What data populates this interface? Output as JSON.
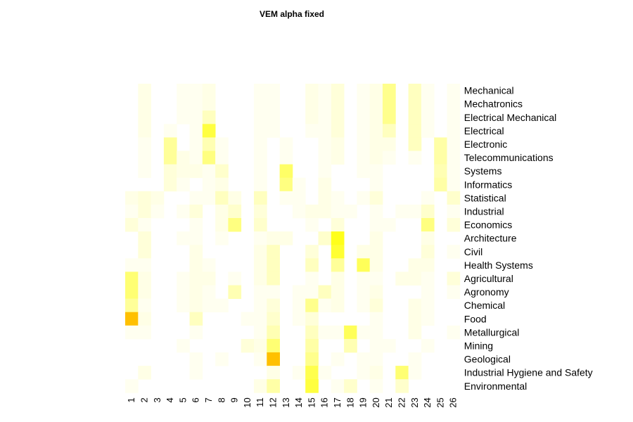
{
  "chart_data": {
    "type": "heatmap",
    "title": "VEM alpha fixed",
    "xlabel": "",
    "ylabel": "",
    "x": [
      "1",
      "2",
      "3",
      "4",
      "5",
      "6",
      "7",
      "8",
      "9",
      "10",
      "11",
      "12",
      "13",
      "14",
      "15",
      "16",
      "17",
      "18",
      "19",
      "20",
      "21",
      "22",
      "23",
      "24",
      "25",
      "26"
    ],
    "y": [
      "Mechanical",
      "Mechatronics",
      "Electrical Mechanical",
      "Electrical",
      "Electronic",
      "Telecommunications",
      "Systems",
      "Informatics",
      "Statistical",
      "Industrial",
      "Economics",
      "Architecture",
      "Civil",
      "Health Systems",
      "Agricultural",
      "Agronomy",
      "Chemical",
      "Food",
      "Metallurgical",
      "Mining",
      "Geological",
      "Industrial Hygiene and Safety",
      "Environmental"
    ],
    "color_scale": {
      "low": "#ffffff",
      "mid": "#ffff00",
      "high": "#ffb000"
    },
    "values": [
      [
        0,
        0.1,
        0,
        0,
        0.06,
        0.06,
        0.1,
        0,
        0,
        0,
        0.06,
        0.06,
        0,
        0,
        0.1,
        0.06,
        0.15,
        0,
        0.06,
        0.1,
        0.45,
        0,
        0.25,
        0.06,
        0,
        0.06
      ],
      [
        0,
        0.1,
        0,
        0,
        0.06,
        0.06,
        0.1,
        0,
        0,
        0,
        0.06,
        0.06,
        0,
        0,
        0.1,
        0.06,
        0.15,
        0,
        0.06,
        0.1,
        0.45,
        0,
        0.25,
        0.06,
        0,
        0.06
      ],
      [
        0,
        0.1,
        0,
        0,
        0.06,
        0.06,
        0.25,
        0,
        0,
        0,
        0.06,
        0.06,
        0,
        0,
        0.1,
        0.06,
        0.15,
        0,
        0.06,
        0.1,
        0.45,
        0,
        0.25,
        0.06,
        0,
        0.06
      ],
      [
        0,
        0.1,
        0,
        0.06,
        0,
        0.06,
        0.75,
        0,
        0,
        0,
        0.06,
        0.06,
        0,
        0,
        0.06,
        0.06,
        0.15,
        0,
        0.06,
        0.1,
        0.25,
        0,
        0.25,
        0.06,
        0,
        0.06
      ],
      [
        0,
        0.06,
        0,
        0.4,
        0,
        0.06,
        0.3,
        0.06,
        0,
        0,
        0.06,
        0,
        0.06,
        0,
        0,
        0.06,
        0.1,
        0,
        0.06,
        0.1,
        0.1,
        0,
        0.25,
        0,
        0.35,
        0.06
      ],
      [
        0,
        0.06,
        0,
        0.4,
        0.1,
        0.06,
        0.5,
        0.06,
        0,
        0,
        0.06,
        0,
        0.06,
        0,
        0,
        0.06,
        0.1,
        0,
        0.06,
        0.1,
        0.06,
        0,
        0.06,
        0,
        0.35,
        0.06
      ],
      [
        0,
        0.06,
        0,
        0.15,
        0.1,
        0.1,
        0.06,
        0.2,
        0,
        0,
        0.06,
        0,
        0.6,
        0,
        0,
        0.06,
        0,
        0,
        0.06,
        0.06,
        0,
        0,
        0,
        0,
        0.3,
        0.06
      ],
      [
        0,
        0,
        0,
        0.15,
        0.06,
        0,
        0.06,
        0.1,
        0,
        0,
        0.06,
        0,
        0.5,
        0.06,
        0,
        0.1,
        0,
        0,
        0,
        0.06,
        0,
        0,
        0,
        0,
        0.35,
        0.06
      ],
      [
        0.1,
        0.15,
        0.1,
        0,
        0,
        0.06,
        0.06,
        0.25,
        0.1,
        0,
        0.25,
        0,
        0.06,
        0.06,
        0,
        0.1,
        0.06,
        0,
        0.06,
        0.15,
        0,
        0,
        0,
        0.06,
        0,
        0.2
      ],
      [
        0.06,
        0.15,
        0.06,
        0,
        0.06,
        0.15,
        0,
        0.1,
        0.2,
        0,
        0.15,
        0,
        0,
        0.06,
        0.1,
        0.1,
        0.06,
        0.06,
        0,
        0.06,
        0,
        0.06,
        0.06,
        0.2,
        0,
        0.06
      ],
      [
        0.15,
        0.06,
        0,
        0,
        0,
        0.06,
        0,
        0.1,
        0.5,
        0,
        0.2,
        0,
        0,
        0,
        0.06,
        0,
        0.15,
        0,
        0,
        0.06,
        0.06,
        0,
        0,
        0.5,
        0,
        0.15
      ],
      [
        0,
        0.15,
        0,
        0,
        0.06,
        0.06,
        0,
        0.06,
        0,
        0,
        0.06,
        0.1,
        0.1,
        0,
        0,
        0.2,
        0.9,
        0,
        0,
        0.1,
        0,
        0,
        0,
        0.1,
        0,
        0
      ],
      [
        0,
        0.15,
        0,
        0,
        0,
        0.1,
        0,
        0,
        0,
        0,
        0.1,
        0.25,
        0,
        0,
        0.15,
        0,
        0.8,
        0,
        0.1,
        0.1,
        0,
        0,
        0,
        0.15,
        0,
        0.06
      ],
      [
        0.06,
        0.06,
        0,
        0,
        0,
        0.1,
        0.06,
        0,
        0,
        0,
        0.1,
        0.25,
        0,
        0,
        0.25,
        0,
        0.4,
        0,
        0.65,
        0.1,
        0,
        0,
        0.1,
        0.1,
        0,
        0
      ],
      [
        0.55,
        0.1,
        0,
        0,
        0.06,
        0.1,
        0.1,
        0,
        0.06,
        0,
        0.1,
        0.25,
        0,
        0,
        0.06,
        0,
        0.1,
        0,
        0.06,
        0.06,
        0,
        0.1,
        0.1,
        0.06,
        0,
        0.15
      ],
      [
        0.55,
        0.1,
        0,
        0,
        0.06,
        0.1,
        0.06,
        0,
        0.3,
        0,
        0.06,
        0.06,
        0,
        0.06,
        0.06,
        0.25,
        0.1,
        0,
        0.06,
        0.1,
        0,
        0,
        0,
        0.06,
        0,
        0.06
      ],
      [
        0.4,
        0.06,
        0,
        0,
        0.06,
        0.1,
        0.06,
        0.06,
        0,
        0,
        0.06,
        0.15,
        0,
        0.06,
        0.45,
        0.06,
        0.1,
        0,
        0.06,
        0.15,
        0,
        0,
        0.1,
        0.06,
        0,
        0
      ],
      [
        1.4,
        0.1,
        0,
        0,
        0,
        0.25,
        0,
        0,
        0,
        0.06,
        0.06,
        0.2,
        0,
        0.06,
        0.15,
        0,
        0,
        0,
        0,
        0.06,
        0,
        0,
        0.1,
        0.06,
        0,
        0
      ],
      [
        0.06,
        0.06,
        0,
        0,
        0,
        0.06,
        0,
        0,
        0,
        0,
        0.06,
        0.3,
        0,
        0,
        0.25,
        0.06,
        0.06,
        0.65,
        0.06,
        0.06,
        0,
        0,
        0.1,
        0,
        0,
        0.06
      ],
      [
        0,
        0,
        0,
        0,
        0.06,
        0,
        0,
        0,
        0,
        0.15,
        0.1,
        0.55,
        0,
        0,
        0.35,
        0,
        0,
        0.3,
        0,
        0.06,
        0.06,
        0,
        0,
        0.06,
        0,
        0
      ],
      [
        0,
        0,
        0,
        0,
        0,
        0.06,
        0,
        0.06,
        0,
        0,
        0.06,
        1.4,
        0,
        0,
        0.45,
        0,
        0.06,
        0,
        0.06,
        0.06,
        0,
        0,
        0.06,
        0,
        0,
        0
      ],
      [
        0,
        0.1,
        0,
        0,
        0,
        0.06,
        0,
        0,
        0,
        0,
        0,
        0.1,
        0,
        0.06,
        0.7,
        0.06,
        0,
        0,
        0.06,
        0.1,
        0,
        0.55,
        0.06,
        0,
        0,
        0
      ],
      [
        0.06,
        0,
        0,
        0,
        0,
        0,
        0,
        0,
        0,
        0,
        0.1,
        0.35,
        0,
        0,
        0.75,
        0,
        0.06,
        0.2,
        0,
        0.06,
        0,
        0.2,
        0,
        0,
        0,
        0
      ]
    ]
  }
}
